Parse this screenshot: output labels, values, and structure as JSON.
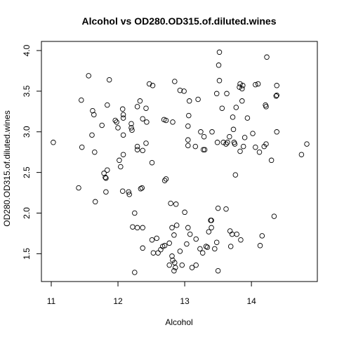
{
  "chart_data": {
    "type": "scatter",
    "title": "Alcohol vs OD280.OD315.of.diluted.wines",
    "xlabel": "Alcohol",
    "ylabel": "OD280.OD315.of.diluted.wines",
    "xlim": [
      11.0,
      14.83
    ],
    "ylim": [
      1.27,
      4.0
    ],
    "xticks": [
      11,
      12,
      13,
      14
    ],
    "yticks": [
      1.5,
      2.0,
      2.5,
      3.0,
      3.5,
      4.0
    ],
    "xtick_labels": [
      "11",
      "12",
      "13",
      "14"
    ],
    "ytick_labels": [
      "1.5",
      "2.0",
      "2.5",
      "3.0",
      "3.5",
      "4.0"
    ],
    "grid": false,
    "legend": "none",
    "points": [
      [
        11.03,
        2.87
      ],
      [
        11.41,
        2.31
      ],
      [
        11.45,
        3.39
      ],
      [
        11.46,
        2.81
      ],
      [
        11.56,
        3.69
      ],
      [
        11.61,
        2.96
      ],
      [
        11.62,
        3.26
      ],
      [
        11.64,
        3.21
      ],
      [
        11.65,
        2.75
      ],
      [
        11.66,
        2.14
      ],
      [
        11.76,
        3.08
      ],
      [
        11.79,
        2.49
      ],
      [
        11.81,
        2.44
      ],
      [
        11.82,
        2.26
      ],
      [
        11.82,
        2.43
      ],
      [
        11.84,
        3.33
      ],
      [
        11.84,
        2.53
      ],
      [
        11.87,
        3.64
      ],
      [
        11.96,
        3.14
      ],
      [
        11.98,
        3.12
      ],
      [
        12.0,
        3.05
      ],
      [
        12.02,
        2.65
      ],
      [
        12.04,
        2.57
      ],
      [
        12.07,
        3.28
      ],
      [
        12.07,
        2.27
      ],
      [
        12.08,
        2.72
      ],
      [
        12.08,
        3.17
      ],
      [
        12.08,
        3.21
      ],
      [
        12.08,
        2.96
      ],
      [
        12.16,
        2.26
      ],
      [
        12.17,
        2.23
      ],
      [
        12.2,
        3.1
      ],
      [
        12.2,
        3.05
      ],
      [
        12.21,
        3.02
      ],
      [
        12.22,
        1.83
      ],
      [
        12.25,
        1.27
      ],
      [
        12.25,
        2.0
      ],
      [
        12.29,
        3.31
      ],
      [
        12.29,
        2.78
      ],
      [
        12.29,
        2.82
      ],
      [
        12.29,
        1.82
      ],
      [
        12.33,
        3.38
      ],
      [
        12.34,
        2.3
      ],
      [
        12.36,
        2.31
      ],
      [
        12.37,
        3.16
      ],
      [
        12.37,
        1.57
      ],
      [
        12.37,
        2.77
      ],
      [
        12.37,
        1.82
      ],
      [
        12.42,
        3.29
      ],
      [
        12.42,
        2.86
      ],
      [
        12.43,
        3.12
      ],
      [
        12.47,
        3.59
      ],
      [
        12.51,
        1.67
      ],
      [
        12.51,
        2.62
      ],
      [
        12.52,
        3.57
      ],
      [
        12.53,
        1.51
      ],
      [
        12.58,
        1.69
      ],
      [
        12.6,
        1.51
      ],
      [
        12.64,
        1.55
      ],
      [
        12.67,
        1.59
      ],
      [
        12.69,
        3.15
      ],
      [
        12.7,
        1.6
      ],
      [
        12.72,
        3.14
      ],
      [
        12.72,
        2.42
      ],
      [
        12.77,
        1.63
      ],
      [
        12.79,
        2.12
      ],
      [
        12.81,
        1.47
      ],
      [
        12.82,
        3.12
      ],
      [
        12.84,
        1.73
      ],
      [
        12.85,
        1.39
      ],
      [
        12.85,
        3.62
      ],
      [
        12.86,
        1.33
      ],
      [
        12.87,
        2.11
      ],
      [
        12.88,
        1.85
      ],
      [
        12.93,
        3.51
      ],
      [
        12.93,
        1.53
      ],
      [
        12.96,
        1.36
      ],
      [
        12.99,
        3.5
      ],
      [
        13.03,
        1.62
      ],
      [
        13.05,
        1.82
      ],
      [
        13.05,
        2.9
      ],
      [
        13.05,
        2.83
      ],
      [
        13.05,
        3.07
      ],
      [
        13.06,
        3.2
      ],
      [
        13.07,
        3.38
      ],
      [
        13.08,
        1.74
      ],
      [
        13.11,
        1.33
      ],
      [
        13.16,
        2.82
      ],
      [
        13.17,
        1.36
      ],
      [
        13.17,
        1.68
      ],
      [
        13.2,
        3.4
      ],
      [
        13.23,
        1.56
      ],
      [
        13.24,
        3.0
      ],
      [
        13.27,
        1.51
      ],
      [
        13.28,
        2.78
      ],
      [
        13.29,
        2.94
      ],
      [
        13.3,
        2.78
      ],
      [
        13.32,
        1.59
      ],
      [
        13.34,
        1.58
      ],
      [
        13.36,
        1.77
      ],
      [
        13.39,
        1.91
      ],
      [
        13.4,
        1.82
      ],
      [
        13.4,
        1.91
      ],
      [
        13.41,
        3.0
      ],
      [
        13.45,
        1.56
      ],
      [
        13.48,
        1.64
      ],
      [
        13.48,
        3.47
      ],
      [
        13.49,
        2.87
      ],
      [
        13.5,
        1.29
      ],
      [
        13.51,
        3.82
      ],
      [
        13.52,
        3.63
      ],
      [
        13.56,
        3.29
      ],
      [
        13.58,
        2.87
      ],
      [
        13.62,
        2.85
      ],
      [
        13.63,
        3.47
      ],
      [
        13.64,
        2.87
      ],
      [
        13.67,
        2.94
      ],
      [
        13.68,
        1.78
      ],
      [
        13.69,
        1.59
      ],
      [
        13.71,
        1.74
      ],
      [
        13.72,
        3.18
      ],
      [
        13.73,
        3.03
      ],
      [
        13.74,
        2.87
      ],
      [
        13.75,
        2.85
      ],
      [
        13.76,
        2.47
      ],
      [
        13.77,
        3.3
      ],
      [
        13.78,
        1.74
      ],
      [
        13.82,
        3.55
      ],
      [
        13.83,
        3.59
      ],
      [
        13.83,
        2.76
      ],
      [
        13.84,
        1.67
      ],
      [
        13.86,
        3.53
      ],
      [
        13.86,
        3.38
      ],
      [
        13.87,
        3.57
      ],
      [
        13.88,
        2.82
      ],
      [
        13.9,
        2.93
      ],
      [
        13.94,
        3.17
      ],
      [
        14.02,
        2.98
      ],
      [
        14.06,
        3.58
      ],
      [
        14.06,
        2.81
      ],
      [
        14.1,
        3.59
      ],
      [
        14.12,
        2.75
      ],
      [
        14.13,
        1.6
      ],
      [
        14.16,
        1.72
      ],
      [
        14.19,
        2.82
      ],
      [
        14.21,
        3.33
      ],
      [
        14.22,
        2.85
      ],
      [
        14.22,
        3.31
      ],
      [
        14.23,
        3.92
      ],
      [
        14.3,
        2.65
      ],
      [
        14.34,
        1.96
      ],
      [
        14.37,
        3.44
      ],
      [
        14.38,
        3.0
      ],
      [
        14.38,
        3.57
      ],
      [
        14.38,
        3.45
      ],
      [
        14.75,
        2.72
      ],
      [
        14.83,
        2.85
      ],
      [
        12.82,
        1.42
      ],
      [
        12.84,
        1.29
      ],
      [
        12.81,
        1.82
      ],
      [
        13.5,
        2.06
      ],
      [
        13.62,
        2.05
      ],
      [
        13.0,
        2.01
      ],
      [
        12.77,
        1.36
      ],
      [
        13.52,
        3.98
      ],
      [
        12.7,
        2.4
      ]
    ]
  }
}
